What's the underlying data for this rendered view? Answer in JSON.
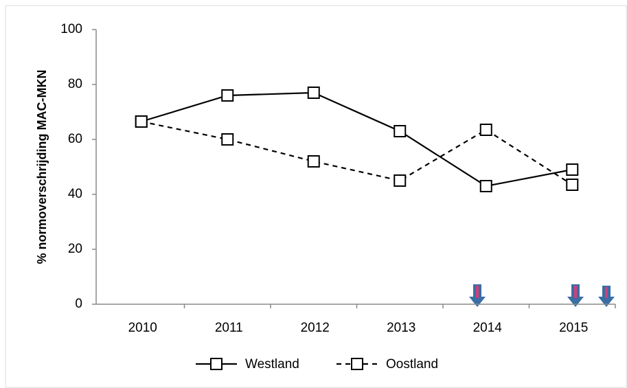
{
  "chart_data": {
    "type": "line",
    "y_label": "% normoverschrijding MAC-MKN",
    "categories": [
      "2010",
      "2011",
      "2012",
      "2013",
      "2014",
      "2015"
    ],
    "series": [
      {
        "name": "Westland",
        "color": "#000000",
        "line_style": "solid",
        "values": [
          66.5,
          76,
          77,
          63,
          43,
          49
        ]
      },
      {
        "name": "Oostland",
        "color": "#000000",
        "line_style": "dashed",
        "values": [
          66.5,
          60,
          52,
          45,
          63.5,
          43.5
        ]
      }
    ],
    "ylim": [
      0,
      100
    ],
    "yticks": [
      0,
      20,
      40,
      60,
      80,
      100
    ],
    "grid": false
  }
}
